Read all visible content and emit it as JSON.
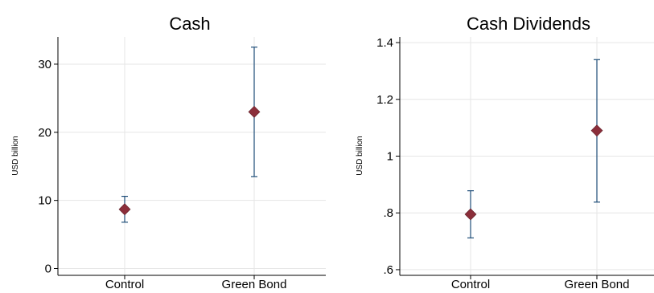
{
  "chart_data": [
    {
      "type": "scatter",
      "title": "Cash",
      "ylabel": "USD billion",
      "categories": [
        "Control",
        "Green Bond"
      ],
      "ylim": [
        -1,
        34
      ],
      "yticks": [
        0,
        10,
        20,
        30
      ],
      "ytick_labels": [
        "0",
        "10",
        "20",
        "30"
      ],
      "series": [
        {
          "values": [
            8.7,
            23.0
          ],
          "ci_low": [
            6.8,
            13.5
          ],
          "ci_high": [
            10.6,
            32.5
          ]
        }
      ],
      "grid": true,
      "marker_color": "#8b2e3a",
      "errorbar_color": "#1f4e79"
    },
    {
      "type": "scatter",
      "title": "Cash Dividends",
      "ylabel": "USD billion",
      "categories": [
        "Control",
        "Green Bond"
      ],
      "ylim": [
        0.58,
        1.42
      ],
      "yticks": [
        0.6,
        0.8,
        1.0,
        1.2,
        1.4
      ],
      "ytick_labels": [
        ".6",
        ".8",
        "1",
        "1.2",
        "1.4"
      ],
      "series": [
        {
          "values": [
            0.795,
            1.09
          ],
          "ci_low": [
            0.712,
            0.838
          ],
          "ci_high": [
            0.878,
            1.34
          ]
        }
      ],
      "grid": true,
      "marker_color": "#8b2e3a",
      "errorbar_color": "#1f4e79"
    }
  ]
}
